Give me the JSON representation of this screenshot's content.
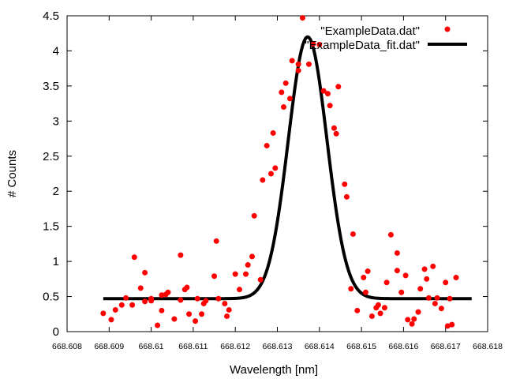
{
  "chart_data": {
    "type": "scatter",
    "xlabel": "Wavelength [nm]",
    "ylabel": "# Counts",
    "xlim": [
      668.608,
      668.618
    ],
    "ylim": [
      0,
      4.5
    ],
    "xticks": [
      "668.608",
      "668.609",
      "668.61",
      "668.611",
      "668.612",
      "668.613",
      "668.614",
      "668.615",
      "668.616",
      "668.617",
      "668.618"
    ],
    "yticks": [
      "0",
      "0.5",
      "1",
      "1.5",
      "2",
      "2.5",
      "3",
      "3.5",
      "4",
      "4.5"
    ],
    "grid": false,
    "legend_position": "top-right",
    "series": [
      {
        "name": "\"ExampleData.dat\"",
        "kind": "points",
        "color": "#ff0000",
        "points": [
          [
            668.60886,
            0.26
          ],
          [
            668.60905,
            0.17
          ],
          [
            668.60915,
            0.31
          ],
          [
            668.6093,
            0.38
          ],
          [
            668.6094,
            0.48
          ],
          [
            668.60955,
            0.38
          ],
          [
            668.6096,
            1.06
          ],
          [
            668.60975,
            0.62
          ],
          [
            668.60985,
            0.43
          ],
          [
            668.60985,
            0.84
          ],
          [
            668.61,
            0.47
          ],
          [
            668.61,
            0.44
          ],
          [
            668.61015,
            0.09
          ],
          [
            668.61025,
            0.52
          ],
          [
            668.61025,
            0.3
          ],
          [
            668.61035,
            0.53
          ],
          [
            668.6104,
            0.56
          ],
          [
            668.61055,
            0.18
          ],
          [
            668.6107,
            1.09
          ],
          [
            668.6107,
            0.45
          ],
          [
            668.6108,
            0.6
          ],
          [
            668.61085,
            0.63
          ],
          [
            668.6109,
            0.25
          ],
          [
            668.61105,
            0.15
          ],
          [
            668.6111,
            0.47
          ],
          [
            668.6112,
            0.25
          ],
          [
            668.61125,
            0.4
          ],
          [
            668.6113,
            0.44
          ],
          [
            668.6115,
            0.79
          ],
          [
            668.61155,
            1.29
          ],
          [
            668.6116,
            0.47
          ],
          [
            668.61175,
            0.4
          ],
          [
            668.6118,
            0.22
          ],
          [
            668.61185,
            0.31
          ],
          [
            668.612,
            0.82
          ],
          [
            668.6121,
            0.6
          ],
          [
            668.61225,
            0.82
          ],
          [
            668.6123,
            0.95
          ],
          [
            668.6124,
            1.07
          ],
          [
            668.61245,
            1.65
          ],
          [
            668.6126,
            0.74
          ],
          [
            668.61265,
            2.16
          ],
          [
            668.61275,
            2.65
          ],
          [
            668.61285,
            2.25
          ],
          [
            668.6129,
            2.83
          ],
          [
            668.61295,
            2.33
          ],
          [
            668.6131,
            3.41
          ],
          [
            668.61315,
            3.2
          ],
          [
            668.6132,
            3.54
          ],
          [
            668.6133,
            3.32
          ],
          [
            668.61335,
            3.86
          ],
          [
            668.6135,
            3.72
          ],
          [
            668.6135,
            3.81
          ],
          [
            668.6136,
            4.47
          ],
          [
            668.61375,
            3.81
          ],
          [
            668.61385,
            4.1
          ],
          [
            668.614,
            4.09
          ],
          [
            668.6141,
            3.43
          ],
          [
            668.6142,
            3.39
          ],
          [
            668.61425,
            3.22
          ],
          [
            668.61435,
            2.9
          ],
          [
            668.6144,
            2.82
          ],
          [
            668.61445,
            3.49
          ],
          [
            668.6146,
            2.1
          ],
          [
            668.61465,
            1.92
          ],
          [
            668.6148,
            1.39
          ],
          [
            668.61475,
            0.61
          ],
          [
            668.6149,
            0.3
          ],
          [
            668.61505,
            0.77
          ],
          [
            668.6151,
            0.56
          ],
          [
            668.61515,
            0.86
          ],
          [
            668.61525,
            0.22
          ],
          [
            668.61535,
            0.34
          ],
          [
            668.6154,
            0.38
          ],
          [
            668.61545,
            0.26
          ],
          [
            668.6156,
            0.7
          ],
          [
            668.61555,
            0.34
          ],
          [
            668.6157,
            1.38
          ],
          [
            668.61585,
            1.12
          ],
          [
            668.61585,
            0.87
          ],
          [
            668.61595,
            0.56
          ],
          [
            668.61605,
            0.8
          ],
          [
            668.6161,
            0.17
          ],
          [
            668.6162,
            0.11
          ],
          [
            668.61625,
            0.18
          ],
          [
            668.61635,
            0.28
          ],
          [
            668.6164,
            0.61
          ],
          [
            668.6165,
            0.89
          ],
          [
            668.61655,
            0.75
          ],
          [
            668.6166,
            0.48
          ],
          [
            668.6167,
            0.93
          ],
          [
            668.61675,
            0.4
          ],
          [
            668.6168,
            0.48
          ],
          [
            668.6169,
            0.33
          ],
          [
            668.617,
            0.7
          ],
          [
            668.61705,
            0.08
          ],
          [
            668.6171,
            0.47
          ],
          [
            668.61715,
            0.1
          ],
          [
            668.61725,
            0.77
          ]
        ]
      },
      {
        "name": "\"ExampleData_fit.dat\"",
        "kind": "line",
        "color": "#000000",
        "model": "gaussian",
        "baseline": 0.47,
        "amplitude": 3.73,
        "center": 668.61372,
        "sigma": 0.00046,
        "x_range": [
          668.60886,
          668.61762
        ]
      }
    ]
  }
}
